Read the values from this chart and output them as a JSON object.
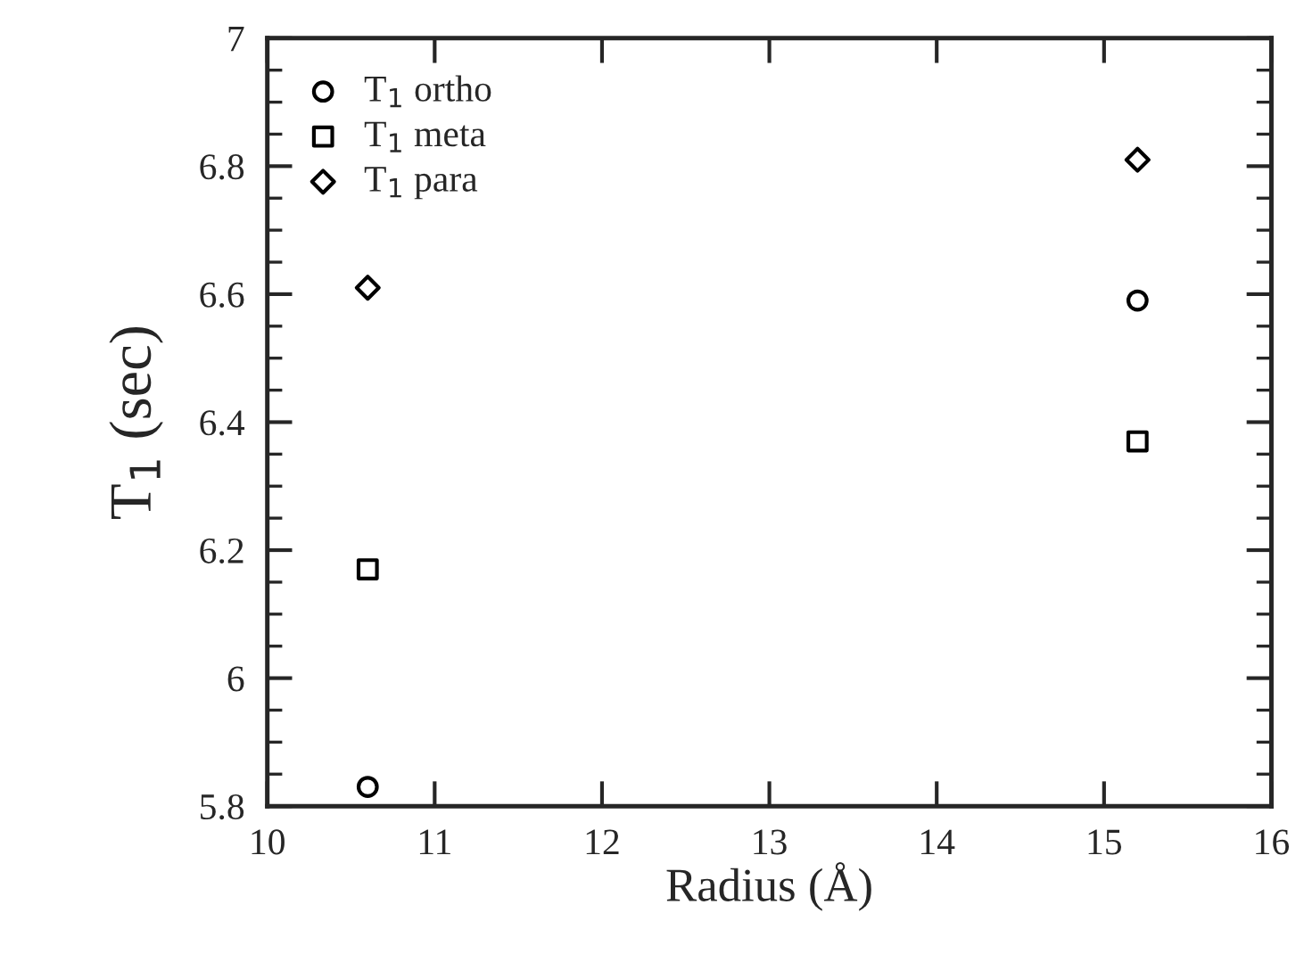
{
  "chart_data": {
    "type": "scatter",
    "xlabel": "Radius (Å)",
    "ylabel": "T$_{1}$ (sec)",
    "xlim": [
      10,
      16
    ],
    "xticks": [
      10,
      11,
      12,
      13,
      14,
      15,
      16
    ],
    "ylim": [
      5.8,
      7
    ],
    "yticks": [
      5.8,
      6,
      6.2,
      6.4,
      6.6,
      6.8,
      7
    ],
    "grid": false,
    "legend": "top left",
    "x": [
      10.6,
      15.2
    ],
    "series": [
      {
        "name": "T$_{1}$ ortho",
        "color": "#000000",
        "marker": "circle",
        "values": [
          5.83,
          6.59
        ]
      },
      {
        "name": "T$_{1}$ meta",
        "color": "#000000",
        "marker": "square",
        "values": [
          6.17,
          6.37
        ]
      },
      {
        "name": "T$_{1}$ para",
        "color": "#000000",
        "marker": "diamond",
        "values": [
          6.61,
          6.81
        ]
      }
    ]
  }
}
